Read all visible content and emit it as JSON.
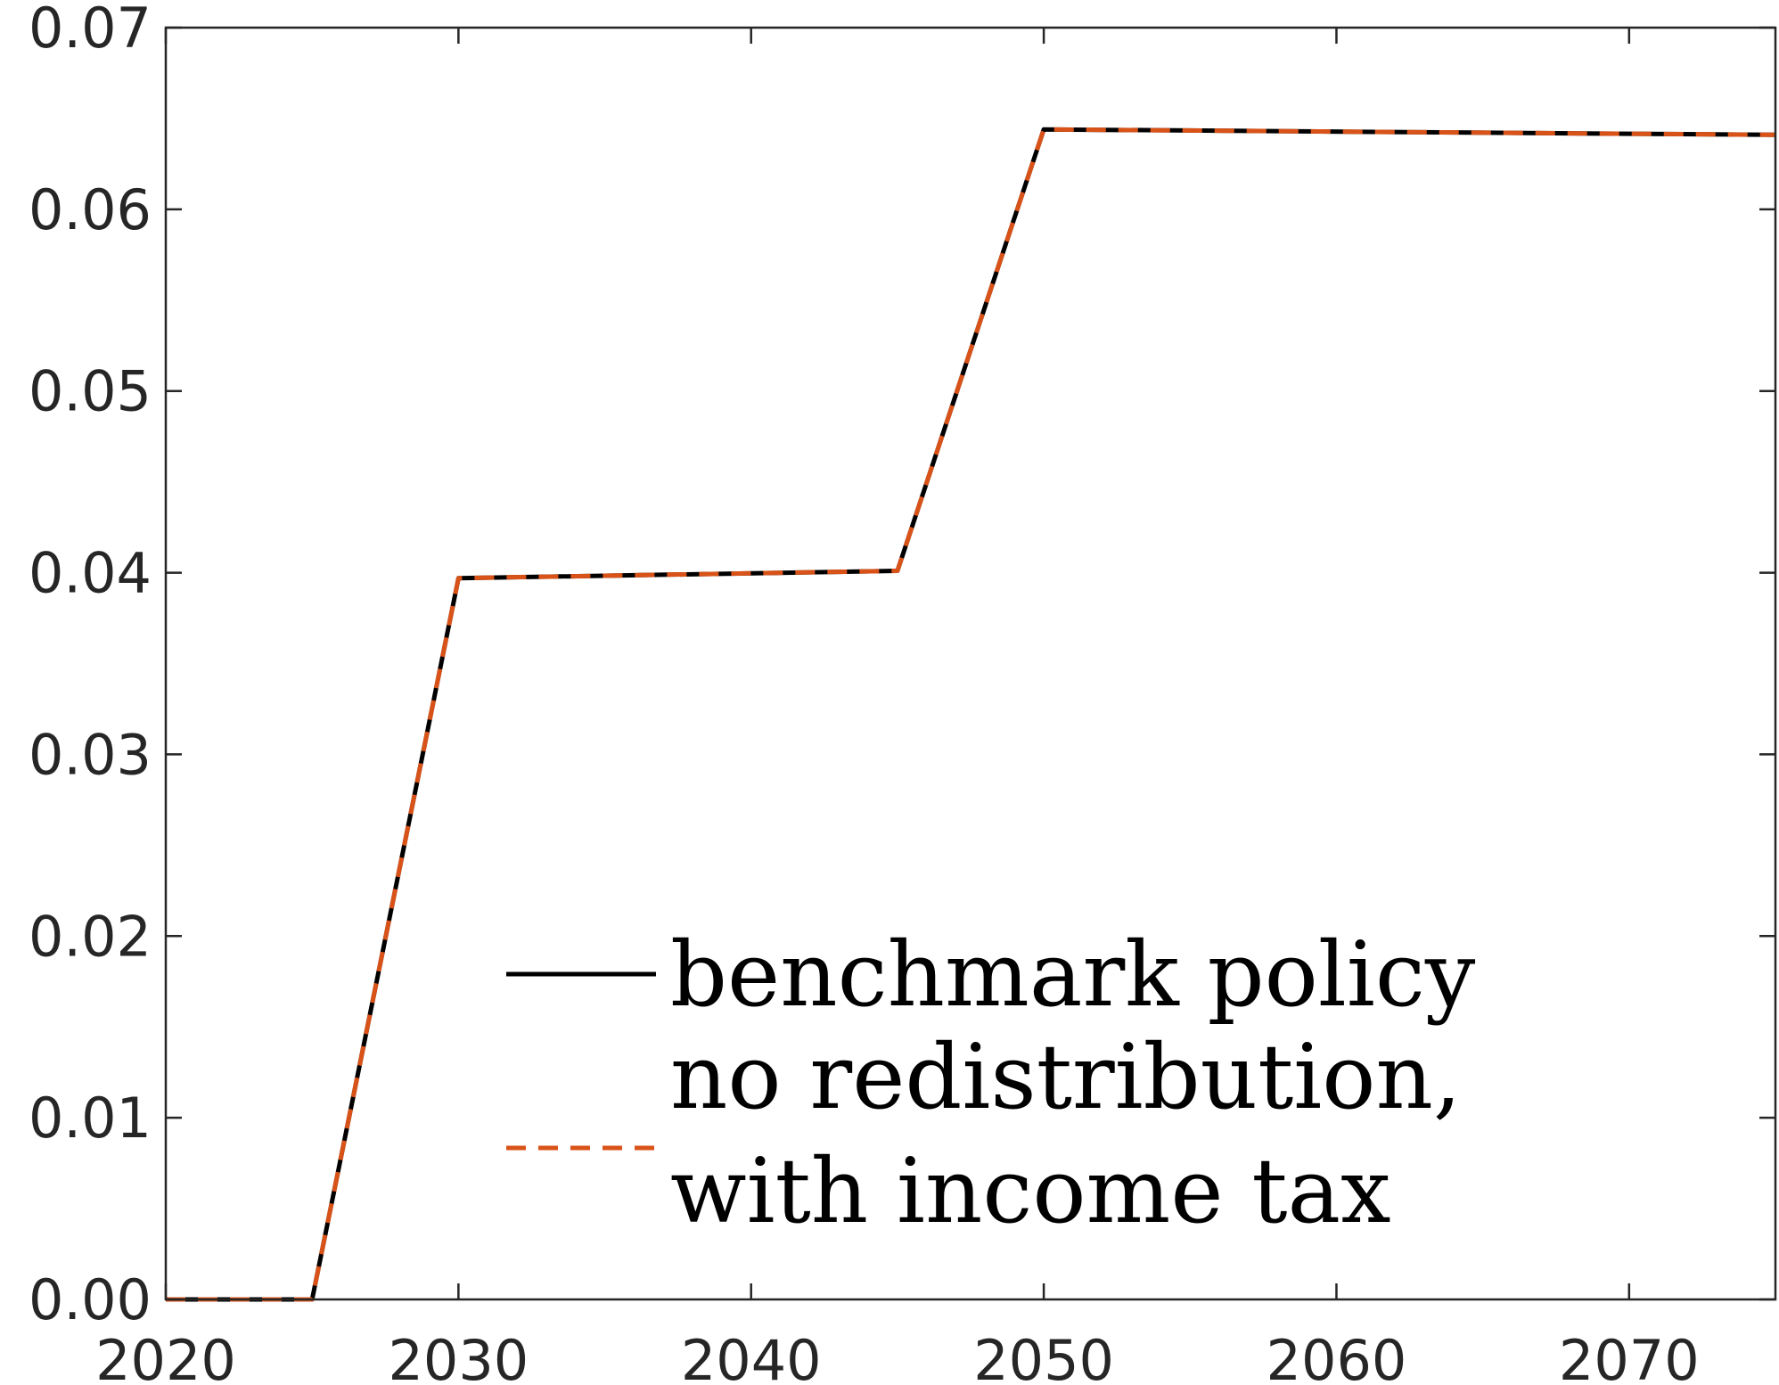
{
  "chart_data": {
    "type": "line",
    "title": "",
    "xlabel": "",
    "ylabel": "",
    "xlim": [
      2020,
      2075
    ],
    "ylim": [
      0,
      0.07
    ],
    "x_ticks": [
      2020,
      2030,
      2040,
      2050,
      2060,
      2070
    ],
    "y_ticks": [
      0,
      0.01,
      0.02,
      0.03,
      0.04,
      0.05,
      0.06,
      0.07
    ],
    "x_tick_labels": [
      "2020",
      "2030",
      "2040",
      "2050",
      "2060",
      "2070"
    ],
    "y_tick_labels": [
      "0.00",
      "0.01",
      "0.02",
      "0.03",
      "0.04",
      "0.05",
      "0.06",
      "0.07"
    ],
    "grid": false,
    "legend_position": "bottom-center",
    "series": [
      {
        "name": "benchmark policy",
        "style": "solid",
        "color": "#000000",
        "x": [
          2020,
          2025,
          2030,
          2045,
          2050,
          2075
        ],
        "y": [
          0.0,
          0.0,
          0.0397,
          0.0401,
          0.0644,
          0.0641
        ]
      },
      {
        "name": "no redistribution, with income tax",
        "legend_lines": [
          "no redistribution,",
          "with income tax"
        ],
        "style": "dashed",
        "color": "#D95319",
        "x": [
          2020,
          2025,
          2030,
          2045,
          2050,
          2075
        ],
        "y": [
          0.0,
          0.0,
          0.0397,
          0.0401,
          0.0644,
          0.0641
        ]
      }
    ]
  }
}
